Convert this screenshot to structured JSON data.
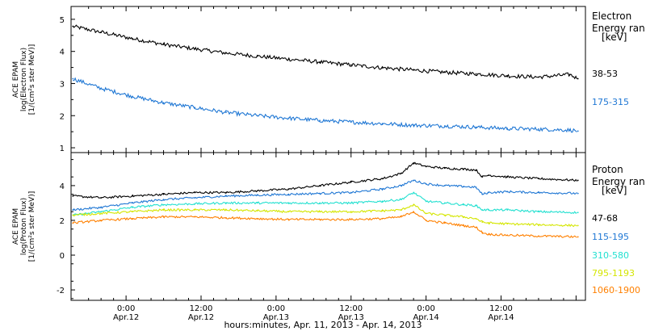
{
  "figure": {
    "x_caption": "hours:minutes, Apr. 11, 2013 - Apr. 14, 2013"
  },
  "chart_data": [
    {
      "type": "line",
      "panel": "electron",
      "ylabel": [
        "ACE EPAM",
        "log(Electron Flux)",
        "[1/(cm²s ster MeV)]"
      ],
      "ylim": [
        0.85,
        5.4
      ],
      "yticks": [
        1,
        2,
        3,
        4,
        5
      ],
      "xlim_hours": [
        15.2,
        97.5
      ],
      "legend": {
        "title": [
          "Electron",
          "Energy ranges",
          "[keV]"
        ],
        "placement": "right"
      },
      "x_hours": [
        15.5,
        20,
        25,
        30,
        35,
        40,
        45,
        50,
        55,
        60,
        65,
        70,
        75,
        80,
        85,
        90,
        95,
        96.3
      ],
      "series": [
        {
          "name": "38-53",
          "color": "#000000",
          "values": [
            4.78,
            4.6,
            4.4,
            4.22,
            4.08,
            3.95,
            3.85,
            3.76,
            3.67,
            3.58,
            3.49,
            3.42,
            3.35,
            3.3,
            3.24,
            3.2,
            3.28,
            3.15
          ]
        },
        {
          "name": "175-315",
          "color": "#1f77d4",
          "values": [
            3.15,
            2.85,
            2.6,
            2.4,
            2.25,
            2.1,
            2.0,
            1.92,
            1.85,
            1.8,
            1.75,
            1.7,
            1.68,
            1.64,
            1.6,
            1.58,
            1.55,
            1.52
          ]
        }
      ]
    },
    {
      "type": "line",
      "panel": "proton",
      "ylabel": [
        "ACE EPAM",
        "log(Proton Flux)",
        "[1/(cm²s ster MeV)]"
      ],
      "ylim": [
        -2.6,
        5.9
      ],
      "yticks": [
        -2,
        0,
        2,
        4
      ],
      "xlim_hours": [
        15.2,
        97.5
      ],
      "x_axis": {
        "major_ticks": [
          {
            "hour": 24,
            "time": "0:00",
            "date": "Apr.12"
          },
          {
            "hour": 36,
            "time": "12:00",
            "date": "Apr.12"
          },
          {
            "hour": 48,
            "time": "0:00",
            "date": "Apr.13"
          },
          {
            "hour": 60,
            "time": "12:00",
            "date": "Apr.13"
          },
          {
            "hour": 72,
            "time": "0:00",
            "date": "Apr.14"
          },
          {
            "hour": 84,
            "time": "12:00",
            "date": "Apr.14"
          }
        ]
      },
      "legend": {
        "title": [
          "Proton",
          "Energy ranges",
          "[keV]"
        ],
        "placement": "right"
      },
      "x_hours": [
        15.5,
        20,
        25,
        30,
        35,
        40,
        45,
        50,
        55,
        60,
        65,
        68,
        70,
        72,
        75,
        78,
        80,
        81,
        82,
        85,
        90,
        96.3
      ],
      "series": [
        {
          "name": "47-68",
          "color": "#000000",
          "values": [
            3.4,
            3.3,
            3.4,
            3.5,
            3.6,
            3.6,
            3.7,
            3.8,
            4.0,
            4.2,
            4.4,
            4.7,
            5.3,
            5.1,
            5.0,
            4.95,
            4.9,
            4.5,
            4.6,
            4.5,
            4.4,
            4.3
          ]
        },
        {
          "name": "115-195",
          "color": "#1f77d4",
          "values": [
            2.6,
            2.75,
            3.0,
            3.2,
            3.3,
            3.4,
            3.45,
            3.5,
            3.55,
            3.6,
            3.8,
            4.0,
            4.3,
            4.1,
            4.0,
            3.95,
            3.9,
            3.5,
            3.6,
            3.65,
            3.6,
            3.55
          ]
        },
        {
          "name": "310-580",
          "color": "#22e0d0",
          "values": [
            2.3,
            2.5,
            2.75,
            2.9,
            2.95,
            3.0,
            3.0,
            3.0,
            3.0,
            3.0,
            3.1,
            3.2,
            3.6,
            3.1,
            3.0,
            2.9,
            2.85,
            2.6,
            2.6,
            2.6,
            2.5,
            2.45
          ]
        },
        {
          "name": "795-1193",
          "color": "#d4e600",
          "values": [
            2.3,
            2.4,
            2.5,
            2.6,
            2.6,
            2.6,
            2.55,
            2.5,
            2.5,
            2.5,
            2.55,
            2.6,
            2.9,
            2.4,
            2.3,
            2.2,
            2.1,
            1.9,
            1.85,
            1.8,
            1.75,
            1.7
          ]
        },
        {
          "name": "1060-1900",
          "color": "#ff8000",
          "values": [
            1.85,
            2.0,
            2.1,
            2.2,
            2.2,
            2.15,
            2.1,
            2.05,
            2.05,
            2.05,
            2.1,
            2.2,
            2.5,
            2.0,
            1.85,
            1.7,
            1.6,
            1.3,
            1.2,
            1.15,
            1.1,
            1.05
          ]
        }
      ]
    }
  ]
}
